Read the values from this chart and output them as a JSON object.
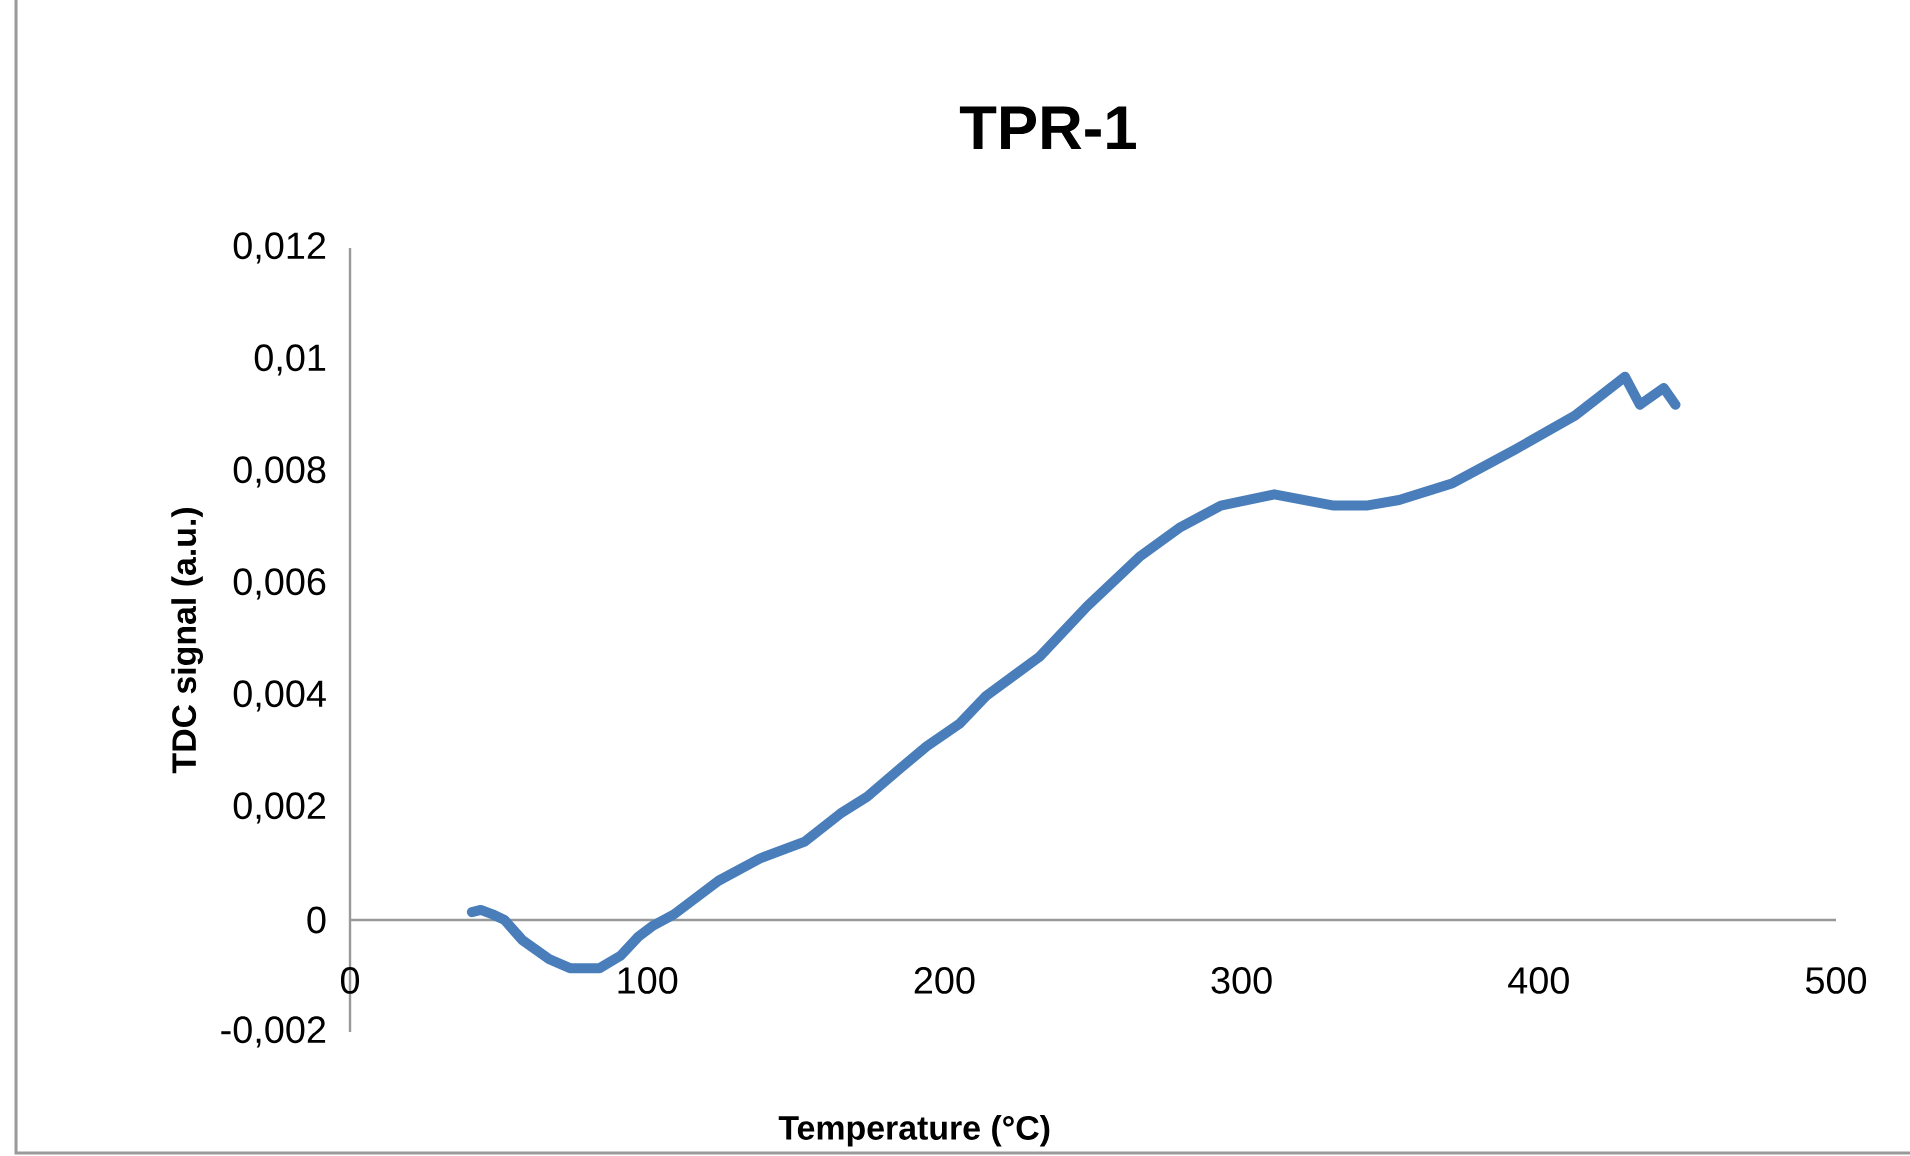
{
  "chart_data": {
    "type": "line",
    "title": "TPR-1",
    "xlabel": "Temperature (°C)",
    "ylabel": "TDC signal (a.u.)",
    "xlim": [
      0,
      500
    ],
    "xticks": [
      0,
      100,
      200,
      300,
      400,
      500
    ],
    "ylim": [
      -0.002,
      0.012
    ],
    "yticks": [
      {
        "value": -0.002,
        "label": "-0,002"
      },
      {
        "value": 0,
        "label": "0"
      },
      {
        "value": 0.002,
        "label": "0,002"
      },
      {
        "value": 0.004,
        "label": "0,004"
      },
      {
        "value": 0.006,
        "label": "0,006"
      },
      {
        "value": 0.008,
        "label": "0,008"
      },
      {
        "value": 0.01,
        "label": "0,01"
      },
      {
        "value": 0.012,
        "label": "0,012"
      }
    ],
    "series": [
      {
        "color": "#4a7ebb",
        "x": [
          41,
          44,
          48,
          52,
          58,
          67,
          74,
          84,
          91,
          97,
          102,
          109,
          124,
          131,
          138,
          153,
          165,
          174,
          185,
          194,
          205,
          214,
          232,
          248,
          266,
          279,
          293,
          311,
          331,
          342,
          353,
          371,
          392,
          412,
          429,
          434,
          442,
          446
        ],
        "values": [
          0.00014,
          0.00018,
          0.0001,
          0.0,
          -0.00036,
          -0.0007,
          -0.00086,
          -0.00086,
          -0.00064,
          -0.0003,
          -0.0001,
          0.0001,
          0.0007,
          0.0009,
          0.0011,
          0.0014,
          0.0019,
          0.0022,
          0.0027,
          0.0031,
          0.0035,
          0.004,
          0.0047,
          0.0056,
          0.0065,
          0.007,
          0.0074,
          0.0076,
          0.0074,
          0.0074,
          0.0075,
          0.0078,
          0.0084,
          0.009,
          0.0097,
          0.0092,
          0.0095,
          0.0092
        ]
      }
    ]
  }
}
